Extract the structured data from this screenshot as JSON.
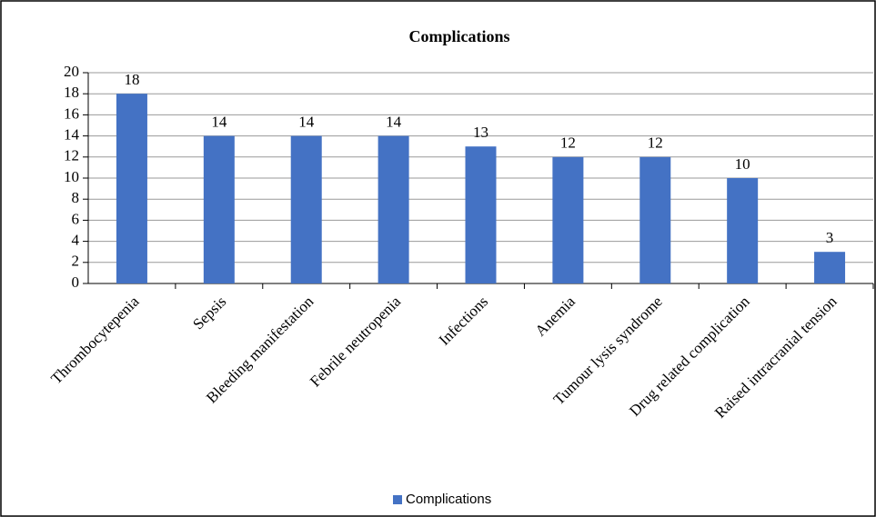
{
  "chart_data": {
    "type": "bar",
    "title": "Complications",
    "categories": [
      "Thrombocytepenia",
      "Sepsis",
      "Bleeding manifestation",
      "Febrile neutropenia",
      "Infections",
      "Anemia",
      "Tumour lysis syndrome",
      "Drug related complication",
      "Raised intracranial tension"
    ],
    "series": [
      {
        "name": "Complications",
        "color": "#4472c4",
        "values": [
          18,
          14,
          14,
          14,
          13,
          12,
          12,
          10,
          3
        ]
      }
    ],
    "ylim": [
      0,
      20
    ],
    "yticks": [
      0,
      2,
      4,
      6,
      8,
      10,
      12,
      14,
      16,
      18,
      20
    ],
    "grid": true,
    "legend": "bottom"
  }
}
